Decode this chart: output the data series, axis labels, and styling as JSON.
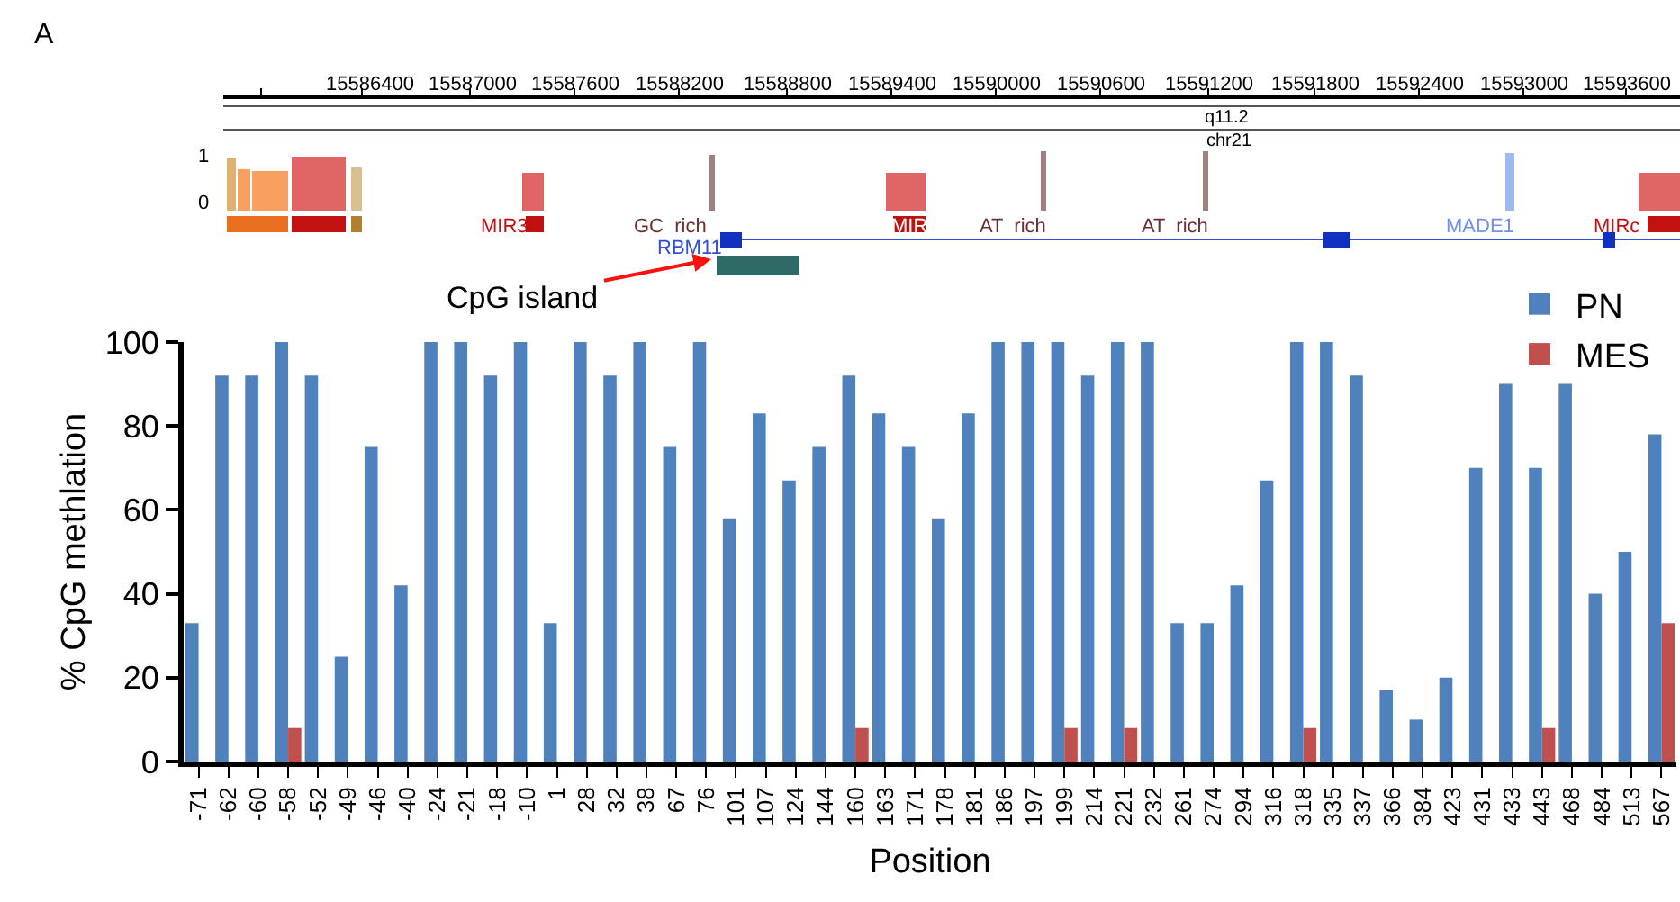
{
  "chart_data": {
    "type": "bar",
    "xlabel": "Position",
    "ylabel": "% CpG methlation",
    "categories": [
      "-71",
      "-62",
      "-60",
      "-58",
      "-52",
      "-49",
      "-46",
      "-40",
      "-24",
      "-21",
      "-18",
      "-10",
      "1",
      "28",
      "32",
      "38",
      "67",
      "76",
      "101",
      "107",
      "124",
      "144",
      "160",
      "163",
      "171",
      "178",
      "181",
      "186",
      "197",
      "199",
      "214",
      "221",
      "232",
      "261",
      "274",
      "294",
      "316",
      "318",
      "335",
      "337",
      "366",
      "384",
      "423",
      "431",
      "433",
      "443",
      "468",
      "484",
      "513",
      "567"
    ],
    "series": [
      {
        "name": "PN",
        "color": "#4f81bd",
        "values": [
          33,
          92,
          92,
          100,
          92,
          25,
          75,
          42,
          100,
          100,
          92,
          100,
          33,
          100,
          92,
          100,
          75,
          100,
          58,
          83,
          67,
          75,
          92,
          83,
          75,
          58,
          83,
          100,
          100,
          100,
          92,
          100,
          100,
          33,
          33,
          42,
          67,
          100,
          100,
          92,
          17,
          10,
          20,
          70,
          90,
          70,
          90,
          40,
          50,
          78
        ]
      },
      {
        "name": "MES",
        "color": "#c0504d",
        "values": [
          0,
          0,
          0,
          8,
          0,
          0,
          0,
          0,
          0,
          0,
          0,
          0,
          0,
          0,
          0,
          0,
          0,
          0,
          0,
          0,
          0,
          0,
          8,
          0,
          0,
          0,
          0,
          0,
          0,
          8,
          0,
          8,
          0,
          0,
          0,
          0,
          0,
          8,
          0,
          0,
          0,
          0,
          0,
          0,
          0,
          8,
          0,
          0,
          0,
          33
        ]
      }
    ],
    "ylim": [
      0,
      100
    ],
    "yticks": [
      0,
      20,
      40,
      60,
      80,
      100
    ],
    "legend": "top right",
    "annotations": [
      "A",
      "15586400",
      "15587000",
      "15587600",
      "15588200",
      "15588800",
      "15589400",
      "15590000",
      "15590600",
      "15591200",
      "15591800",
      "15592400",
      "15593000",
      "15593600",
      "q11.2",
      "chr21",
      "1",
      "0",
      "MIR3",
      "GC  rich",
      "MIR",
      "AT  rich",
      "AT  rich",
      "MADE1",
      "MIRc",
      "RBM11",
      "CpG island"
    ]
  }
}
